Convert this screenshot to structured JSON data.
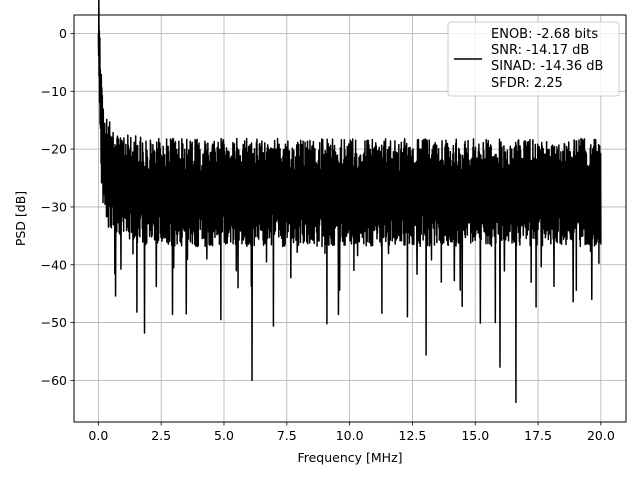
{
  "chart_data": {
    "type": "line",
    "title": "",
    "xlabel": "Frequency [MHz]",
    "ylabel": "PSD [dB]",
    "xlim": [
      -0.97,
      21.0
    ],
    "ylim": [
      -67.2,
      3.2
    ],
    "xticks": [
      0.0,
      2.5,
      5.0,
      7.5,
      10.0,
      12.5,
      15.0,
      17.5,
      20.0
    ],
    "xtick_labels": [
      "0.0",
      "2.5",
      "5.0",
      "7.5",
      "10.0",
      "12.5",
      "15.0",
      "17.5",
      "20.0"
    ],
    "yticks": [
      0,
      -10,
      -20,
      -30,
      -40,
      -50,
      -60
    ],
    "ytick_labels": [
      "0",
      "−10",
      "−20",
      "−30",
      "−40",
      "−50",
      "−60"
    ],
    "grid": true,
    "legend_position": "top-right",
    "legend_lines": [
      "ENOB: -2.68 bits",
      "SNR: -14.17 dB",
      "SINAD: -14.36 dB",
      "SFDR: 2.25"
    ],
    "line_color": "#000000",
    "series": [
      {
        "x_start": 0.0,
        "x_end": 20.0,
        "n_points": 2048,
        "peak_at_x": 0.0,
        "peak_value": 0.0,
        "noise_floor_mean": -27.5,
        "noise_upper_envelope": -20.0,
        "noise_lower_envelope": -37.0,
        "deep_nulls": [
          {
            "x": 0.68,
            "y": -45.4
          },
          {
            "x": 1.53,
            "y": -48.2
          },
          {
            "x": 1.84,
            "y": -51.8
          },
          {
            "x": 2.95,
            "y": -48.6
          },
          {
            "x": 3.5,
            "y": -48.5
          },
          {
            "x": 4.88,
            "y": -49.5
          },
          {
            "x": 6.12,
            "y": -60.0
          },
          {
            "x": 6.97,
            "y": -50.6
          },
          {
            "x": 9.1,
            "y": -50.2
          },
          {
            "x": 9.56,
            "y": -48.6
          },
          {
            "x": 11.28,
            "y": -48.4
          },
          {
            "x": 12.3,
            "y": -49.0
          },
          {
            "x": 13.04,
            "y": -55.6
          },
          {
            "x": 14.48,
            "y": -47.2
          },
          {
            "x": 15.2,
            "y": -50.1
          },
          {
            "x": 15.8,
            "y": -50.0
          },
          {
            "x": 15.98,
            "y": -57.7
          },
          {
            "x": 16.62,
            "y": -63.8
          },
          {
            "x": 17.42,
            "y": -47.3
          },
          {
            "x": 18.9,
            "y": -46.4
          },
          {
            "x": 19.64,
            "y": -46.0
          }
        ]
      }
    ]
  }
}
